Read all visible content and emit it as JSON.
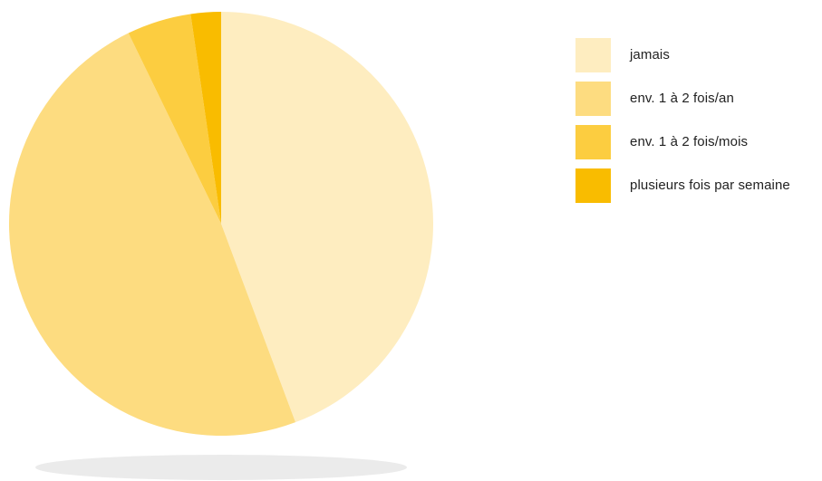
{
  "chart_data": {
    "type": "pie",
    "title": "",
    "slices": [
      {
        "label": "jamais",
        "value": 44.3,
        "color": "#FEEDC0"
      },
      {
        "label": "env. 1 à 2 fois/an",
        "value": 48.5,
        "color": "#FDDC80"
      },
      {
        "label": "env. 1 à 2 fois/mois",
        "value": 4.9,
        "color": "#FCCD40"
      },
      {
        "label": "plusieurs fois par semaine",
        "value": 2.3,
        "color": "#F9BC00"
      }
    ],
    "legend": {
      "position": "right"
    }
  }
}
